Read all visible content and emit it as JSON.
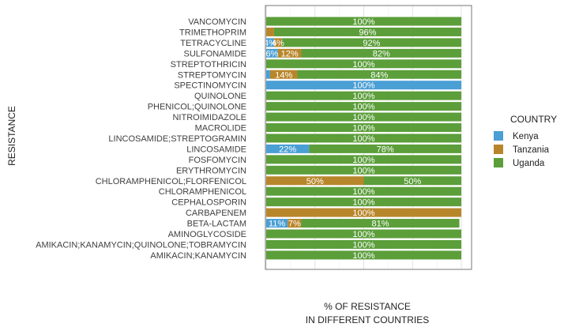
{
  "chart_data": {
    "type": "bar",
    "orientation": "horizontal",
    "stacked": true,
    "ylabel": "RESISTANCE",
    "xlabel_lines": [
      "% OF RESISTANCE",
      "IN DIFFERENT COUNTRIES"
    ],
    "xlim": [
      0,
      100
    ],
    "grid": true,
    "legend_position": "right",
    "legend_title": "COUNTRY",
    "categories": [
      "VANCOMYCIN",
      "TRIMETHOPRIM",
      "TETRACYCLINE",
      "SULFONAMIDE",
      "STREPTOTHRICIN",
      "STREPTOMYCIN",
      "SPECTINOMYCIN",
      "QUINOLONE",
      "PHENICOL;QUINOLONE",
      "NITROIMIDAZOLE",
      "MACROLIDE",
      "LINCOSAMIDE;STREPTOGRAMIN",
      "LINCOSAMIDE",
      "FOSFOMYCIN",
      "ERYTHROMYCIN",
      "CHLORAMPHENICOL;FLORFENICOL",
      "CHLORAMPHENICOL",
      "CEPHALOSPORIN",
      "CARBAPENEM",
      "BETA-LACTAM",
      "AMINOGLYCOSIDE",
      "AMIKACIN;KANAMYCIN;QUINOLONE;TOBRAMYCIN",
      "AMIKACIN;KANAMYCIN"
    ],
    "series": [
      {
        "name": "Kenya",
        "color": "#4a9fd4",
        "values": [
          0,
          0,
          4,
          6,
          0,
          2,
          100,
          0,
          0,
          0,
          0,
          0,
          22,
          0,
          0,
          0,
          0,
          0,
          0,
          11,
          0,
          0,
          0
        ],
        "labels": [
          "",
          "",
          "4%",
          "6%",
          "",
          "",
          "100%",
          "",
          "",
          "",
          "",
          "",
          "22%",
          "",
          "",
          "",
          "",
          "",
          "",
          "11%",
          "",
          "",
          ""
        ]
      },
      {
        "name": "Tanzania",
        "color": "#b8862a",
        "values": [
          0,
          4,
          4,
          12,
          0,
          14,
          0,
          0,
          0,
          0,
          0,
          0,
          0,
          0,
          0,
          50,
          0,
          0,
          100,
          7,
          0,
          0,
          0
        ],
        "labels": [
          "",
          "",
          "4%",
          "12%",
          "",
          "14%",
          "",
          "",
          "",
          "",
          "",
          "",
          "",
          "",
          "",
          "50%",
          "",
          "",
          "100%",
          "7%",
          "",
          "",
          ""
        ]
      },
      {
        "name": "Uganda",
        "color": "#5b9e3a",
        "values": [
          100,
          96,
          92,
          82,
          100,
          84,
          0,
          100,
          100,
          100,
          100,
          100,
          78,
          100,
          100,
          50,
          100,
          100,
          0,
          81,
          100,
          100,
          100
        ],
        "labels": [
          "100%",
          "96%",
          "92%",
          "82%",
          "100%",
          "84%",
          "",
          "100%",
          "100%",
          "100%",
          "100%",
          "100%",
          "78%",
          "100%",
          "100%",
          "50%",
          "100%",
          "100%",
          "",
          "81%",
          "100%",
          "100%",
          "100%"
        ]
      }
    ]
  }
}
